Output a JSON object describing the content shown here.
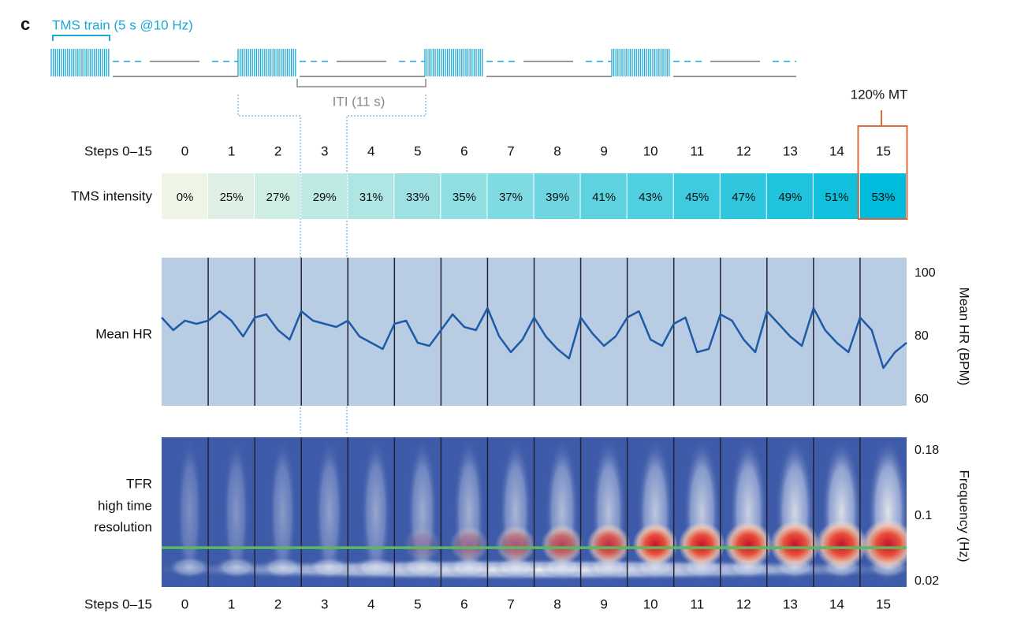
{
  "panel_label": "c",
  "protocol": {
    "train_label": "TMS train (5 s @10 Hz)",
    "iti_label": "ITI (11 s)",
    "mt_label": "120% MT"
  },
  "steps": {
    "label": "Steps 0–15",
    "values": [
      "0",
      "1",
      "2",
      "3",
      "4",
      "5",
      "6",
      "7",
      "8",
      "9",
      "10",
      "11",
      "12",
      "13",
      "14",
      "15"
    ]
  },
  "intensity": {
    "label": "TMS intensity",
    "values": [
      "0%",
      "25%",
      "27%",
      "29%",
      "31%",
      "33%",
      "35%",
      "37%",
      "39%",
      "41%",
      "43%",
      "45%",
      "47%",
      "49%",
      "51%",
      "53%"
    ]
  },
  "chart_data": [
    {
      "type": "line",
      "row_label": "Mean HR",
      "ylabel": "Mean HR (BPM)",
      "color": "#1f5aa6",
      "x": [
        0,
        0.25,
        0.5,
        0.75,
        1,
        1.25,
        1.5,
        1.75,
        2,
        2.25,
        2.5,
        2.75,
        3,
        3.25,
        3.5,
        3.75,
        4,
        4.25,
        4.5,
        4.75,
        5,
        5.25,
        5.5,
        5.75,
        6,
        6.25,
        6.5,
        6.75,
        7,
        7.25,
        7.5,
        7.75,
        8,
        8.25,
        8.5,
        8.75,
        9,
        9.25,
        9.5,
        9.75,
        10,
        10.25,
        10.5,
        10.75,
        11,
        11.25,
        11.5,
        11.75,
        12,
        12.25,
        12.5,
        12.75,
        13,
        13.25,
        13.5,
        13.75,
        14,
        14.25,
        14.5,
        14.75,
        15,
        15.25,
        15.5,
        15.75,
        16
      ],
      "values": [
        86,
        82,
        85,
        84,
        85,
        88,
        85,
        80,
        86,
        87,
        82,
        79,
        88,
        85,
        84,
        83,
        85,
        80,
        78,
        76,
        84,
        85,
        78,
        77,
        82,
        87,
        83,
        82,
        89,
        80,
        75,
        79,
        86,
        80,
        76,
        73,
        86,
        81,
        77,
        80,
        86,
        88,
        79,
        77,
        84,
        86,
        75,
        76,
        87,
        85,
        79,
        75,
        88,
        84,
        80,
        77,
        89,
        82,
        78,
        75,
        86,
        82,
        70,
        75,
        78
      ],
      "xlim": [
        0,
        16
      ],
      "ylim": [
        58,
        105
      ],
      "yticks": [
        60,
        80,
        100
      ]
    },
    {
      "type": "heatmap",
      "row_label": [
        "TFR",
        "high time",
        "resolution"
      ],
      "ylabel": "Frequency (Hz)",
      "ylim": [
        0.013,
        0.196
      ],
      "yticks": [
        0.02,
        0.1,
        0.18
      ],
      "reference_line": 0.061,
      "reference_color": "#5cb85c"
    }
  ]
}
